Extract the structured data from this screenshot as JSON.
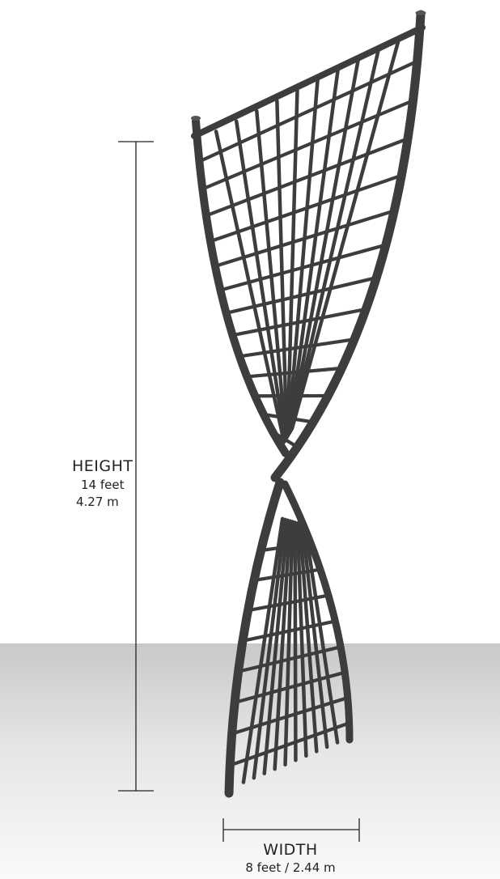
{
  "height": {
    "label": "HEIGHT",
    "feet": "14 feet",
    "meters": "4.27 m"
  },
  "width": {
    "label": "WIDTH",
    "value": "8 feet / 2.44 m"
  },
  "colors": {
    "structure": "#3d3d3d",
    "floor_far": "#c9c9c9",
    "floor_near": "#fafafa",
    "dimension_line": "#222222"
  }
}
